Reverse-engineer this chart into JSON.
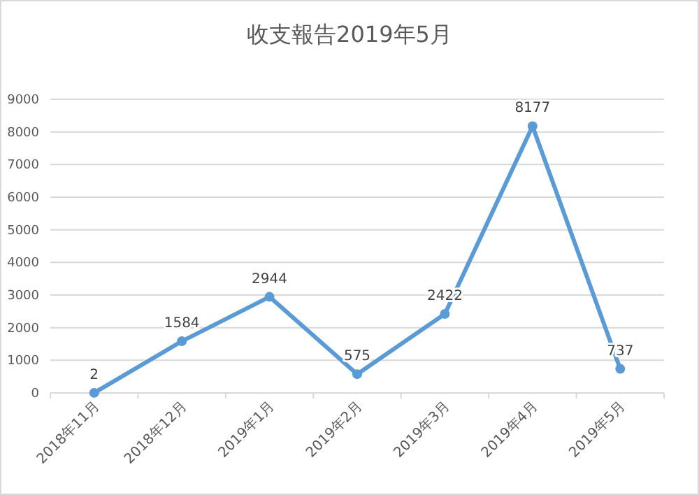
{
  "chart_data": {
    "type": "line",
    "title": "收支報告2019年5月",
    "categories": [
      "2018年11月",
      "2018年12月",
      "2019年1月",
      "2019年2月",
      "2019年3月",
      "2019年4月",
      "2019年5月"
    ],
    "series": [
      {
        "color": "#5b9bd5",
        "values": [
          2,
          1584,
          2944,
          575,
          2422,
          8177,
          737
        ]
      }
    ],
    "ylim": [
      0,
      9000
    ],
    "yticks": [
      0,
      1000,
      2000,
      3000,
      4000,
      5000,
      6000,
      7000,
      8000,
      9000
    ],
    "grid": "y",
    "marker": "circle",
    "line_style": "solid",
    "data_labels": true
  }
}
